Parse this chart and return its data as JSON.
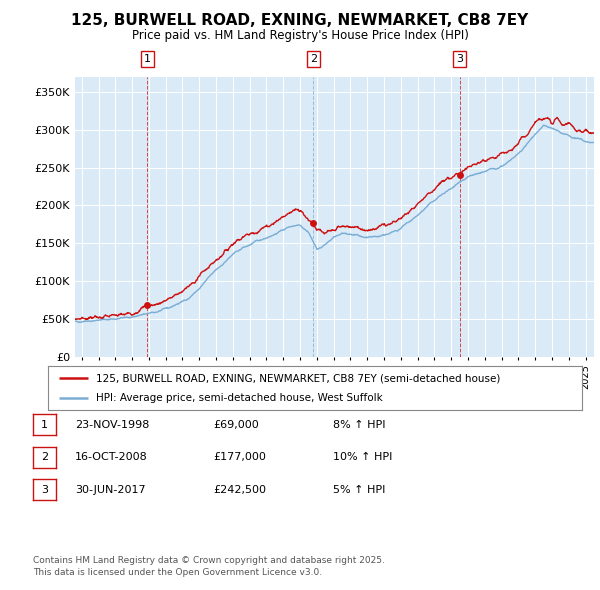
{
  "title": "125, BURWELL ROAD, EXNING, NEWMARKET, CB8 7EY",
  "subtitle": "Price paid vs. HM Land Registry's House Price Index (HPI)",
  "ylabel_ticks": [
    "£0",
    "£50K",
    "£100K",
    "£150K",
    "£200K",
    "£250K",
    "£300K",
    "£350K"
  ],
  "ytick_values": [
    0,
    50000,
    100000,
    150000,
    200000,
    250000,
    300000,
    350000
  ],
  "ylim": [
    0,
    370000
  ],
  "xlim_start": 1994.6,
  "xlim_end": 2025.5,
  "hpi_color": "#7aadd4",
  "price_color": "#cc1111",
  "bg_color": "#dbeaf7",
  "transactions": [
    {
      "num": 1,
      "date_dec": 1998.9,
      "price": 69000,
      "label": "23-NOV-1998",
      "amount": "£69,000",
      "hpi_pct": "8% ↑ HPI"
    },
    {
      "num": 2,
      "date_dec": 2008.79,
      "price": 177000,
      "label": "16-OCT-2008",
      "amount": "£177,000",
      "hpi_pct": "10% ↑ HPI"
    },
    {
      "num": 3,
      "date_dec": 2017.5,
      "price": 242500,
      "label": "30-JUN-2017",
      "amount": "£242,500",
      "hpi_pct": "5% ↑ HPI"
    }
  ],
  "trans_vline_colors": [
    "#cc1111",
    "#7aadd4",
    "#cc1111"
  ],
  "legend_line1": "125, BURWELL ROAD, EXNING, NEWMARKET, CB8 7EY (semi-detached house)",
  "legend_line2": "HPI: Average price, semi-detached house, West Suffolk",
  "footer": "Contains HM Land Registry data © Crown copyright and database right 2025.\nThis data is licensed under the Open Government Licence v3.0.",
  "xtick_years": [
    1995,
    1996,
    1997,
    1998,
    1999,
    2000,
    2001,
    2002,
    2003,
    2004,
    2005,
    2006,
    2007,
    2008,
    2009,
    2010,
    2011,
    2012,
    2013,
    2014,
    2015,
    2016,
    2017,
    2018,
    2019,
    2020,
    2021,
    2022,
    2023,
    2024,
    2025
  ]
}
